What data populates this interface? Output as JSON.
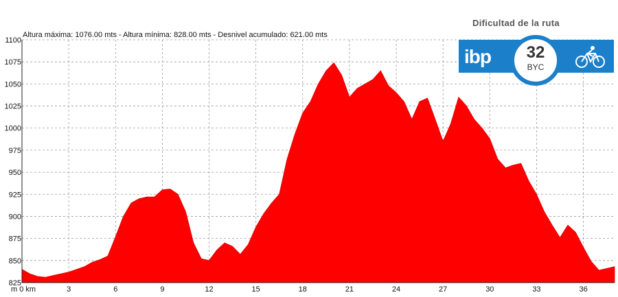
{
  "difficulty": {
    "title": "Dificultad de la ruta",
    "logo": "ibp",
    "score": "32",
    "unit": "BYC",
    "icon": "cyclist-icon",
    "color": "#1b7fc9"
  },
  "chart_data": {
    "type": "area",
    "stats_text": "Altura máxima: 1076.00 mts - Altura mínima: 828.00 mts - Desnivel acumulado: 621.00 mts",
    "x_origin_label": "m 0 km",
    "x_ticks": [
      3,
      6,
      9,
      12,
      15,
      18,
      21,
      24,
      27,
      30,
      33,
      36
    ],
    "y_ticks": [
      825,
      850,
      875,
      900,
      925,
      950,
      975,
      1000,
      1025,
      1050,
      1075,
      1100
    ],
    "xlim": [
      0,
      38
    ],
    "ylim": [
      825,
      1100
    ],
    "grid": true,
    "fill_color": "#ff0000",
    "series": [
      {
        "x": [
          0,
          0.5,
          1,
          1.5,
          2,
          2.5,
          3,
          3.5,
          4,
          4.5,
          5,
          5.5,
          6,
          6.5,
          7,
          7.5,
          8,
          8.5,
          9,
          9.5,
          10,
          10.5,
          11,
          11.5,
          12,
          12.5,
          13,
          13.5,
          14,
          14.5,
          15,
          15.5,
          16,
          16.5,
          17,
          17.5,
          18,
          18.5,
          19,
          19.5,
          20,
          20.5,
          21,
          21.5,
          22,
          22.5,
          23,
          23.5,
          24,
          24.5,
          25,
          25.5,
          26,
          26.5,
          27,
          27.5,
          28,
          28.5,
          29,
          29.5,
          30,
          30.5,
          31,
          31.5,
          32,
          32.5,
          33,
          33.5,
          34,
          34.5,
          35,
          35.5,
          36,
          36.5,
          37,
          37.5,
          38
        ],
        "y": [
          840,
          835,
          832,
          831,
          833,
          835,
          837,
          840,
          843,
          848,
          851,
          855,
          877,
          900,
          915,
          920,
          922,
          922,
          930,
          931,
          925,
          905,
          870,
          852,
          850,
          862,
          870,
          866,
          857,
          868,
          888,
          903,
          915,
          925,
          965,
          993,
          1017,
          1030,
          1050,
          1065,
          1074,
          1060,
          1035,
          1045,
          1050,
          1055,
          1065,
          1048,
          1040,
          1030,
          1010,
          1030,
          1034,
          1010,
          985,
          1005,
          1035,
          1025,
          1010,
          1000,
          988,
          965,
          955,
          958,
          960,
          940,
          925,
          905,
          890,
          876,
          890,
          882,
          865,
          849,
          839,
          841,
          843
        ]
      }
    ]
  }
}
